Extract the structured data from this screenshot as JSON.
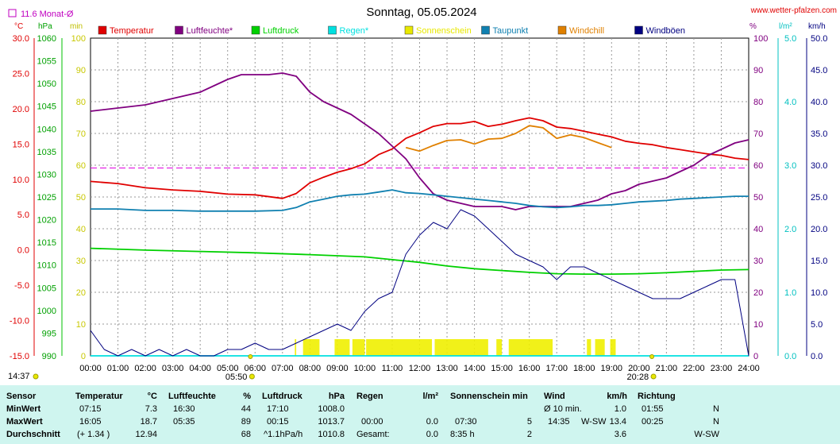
{
  "header": {
    "title": "Sonntag, 05.05.2024",
    "site": "www.wetter-pfalzen.com",
    "monthly_avg_label": "11.6 Monat-Ø",
    "unit_labels": {
      "temp": "°C",
      "press": "hPa",
      "min": "min",
      "pct": "%",
      "rain": "l/m²",
      "wind": "km/h"
    }
  },
  "legend": [
    {
      "label": "Temperatur",
      "color": "#e00000"
    },
    {
      "label": "Luftfeuchte*",
      "color": "#800080"
    },
    {
      "label": "Luftdruck",
      "color": "#00d000"
    },
    {
      "label": "Regen*",
      "color": "#00e0e0"
    },
    {
      "label": "Sonnenschein",
      "color": "#e8e800"
    },
    {
      "label": "Taupunkt",
      "color": "#1080b0"
    },
    {
      "label": "Windchill",
      "color": "#e08000"
    },
    {
      "label": "Windböen",
      "color": "#000080"
    }
  ],
  "chart_data": {
    "type": "line",
    "x_ticks": [
      "00:00",
      "01:00",
      "02:00",
      "03:00",
      "04:00",
      "05:00",
      "06:00",
      "07:00",
      "08:00",
      "09:00",
      "10:00",
      "11:00",
      "12:00",
      "13:00",
      "14:00",
      "15:00",
      "16:00",
      "17:00",
      "18:00",
      "19:00",
      "20:00",
      "21:00",
      "22:00",
      "23:00",
      "24:00"
    ],
    "axes": {
      "temperature": {
        "unit": "°C",
        "ylim": [
          -15,
          30
        ],
        "ticks": [
          "30.0",
          "25.0",
          "20.0",
          "15.0",
          "10.0",
          "5.0",
          "0.0",
          "-5.0",
          "-10.0",
          "-15.0"
        ]
      },
      "pressure": {
        "unit": "hPa",
        "ylim": [
          990,
          1060
        ],
        "ticks": [
          "1060",
          "1055",
          "1050",
          "1045",
          "1040",
          "1035",
          "1030",
          "1025",
          "1020",
          "1015",
          "1010",
          "1005",
          "1000",
          "995",
          "990"
        ]
      },
      "sunshine": {
        "unit": "min",
        "ylim": [
          0,
          100
        ],
        "ticks": [
          "100",
          "90",
          "80",
          "70",
          "60",
          "50",
          "40",
          "30",
          "20",
          "10",
          "0"
        ]
      },
      "humidity": {
        "unit": "%",
        "ylim": [
          0,
          100
        ],
        "ticks": [
          "100",
          "90",
          "80",
          "70",
          "60",
          "50",
          "40",
          "30",
          "20",
          "10",
          "0"
        ]
      },
      "rain": {
        "unit": "l/m²",
        "ylim": [
          0,
          5
        ],
        "ticks": [
          "5.0",
          "4.0",
          "3.0",
          "2.0",
          "1.0",
          "0.0"
        ]
      },
      "wind": {
        "unit": "km/h",
        "ylim": [
          0,
          50
        ],
        "ticks": [
          "50.0",
          "45.0",
          "40.0",
          "35.0",
          "30.0",
          "25.0",
          "20.0",
          "15.0",
          "10.0",
          "5.0",
          "0.0"
        ]
      }
    },
    "monthly_avg_temp": 11.6,
    "sunrise": {
      "x": 5.83,
      "label": "05:50"
    },
    "sunset": {
      "x": 20.47,
      "label": "20:28"
    },
    "moonrise_label": "14:37",
    "series": [
      {
        "name": "Temperatur",
        "axis": "temperature",
        "color": "#e00000",
        "x": [
          0,
          1,
          2,
          3,
          4,
          5,
          6,
          7,
          7.5,
          8,
          8.5,
          9,
          9.5,
          10,
          10.5,
          11,
          11.5,
          12,
          12.5,
          13,
          13.5,
          14,
          14.5,
          15,
          15.5,
          16,
          16.5,
          17,
          17.5,
          18,
          18.5,
          19,
          19.5,
          20,
          20.5,
          21,
          21.5,
          22,
          22.5,
          23,
          23.5,
          24
        ],
        "y": [
          9.7,
          9.4,
          8.8,
          8.5,
          8.3,
          7.9,
          7.8,
          7.3,
          8,
          9.5,
          10.3,
          11,
          11.5,
          12.2,
          13.5,
          14.3,
          15.8,
          16.6,
          17.5,
          17.9,
          17.9,
          18.2,
          17.5,
          17.8,
          18.3,
          18.7,
          18.3,
          17.4,
          17.2,
          16.8,
          16.4,
          16,
          15.4,
          15.1,
          14.9,
          14.5,
          14.2,
          13.9,
          13.6,
          13.4,
          13,
          12.8
        ]
      },
      {
        "name": "Luftfeuchte*",
        "axis": "humidity",
        "color": "#800080",
        "x": [
          0,
          1,
          2,
          3,
          4,
          4.5,
          5,
          5.5,
          6,
          6.5,
          7,
          7.5,
          8,
          8.5,
          9,
          9.5,
          10,
          10.5,
          11,
          11.5,
          12,
          12.5,
          13,
          13.5,
          14,
          14.5,
          15,
          15.5,
          16,
          16.5,
          17,
          17.5,
          18,
          18.5,
          19,
          19.5,
          20,
          20.5,
          21,
          21.5,
          22,
          22.5,
          23,
          23.5,
          24
        ],
        "y": [
          77,
          78,
          79,
          81,
          83,
          85,
          87,
          88.5,
          88.5,
          88.5,
          89,
          88,
          83,
          80,
          78,
          76,
          73,
          70,
          66,
          62,
          56,
          51,
          49,
          48,
          47,
          47,
          47,
          46,
          47,
          47,
          47,
          47,
          48,
          49,
          51,
          52,
          54,
          55,
          56,
          58,
          60,
          63,
          65,
          67,
          68
        ]
      },
      {
        "name": "Luftdruck",
        "axis": "pressure",
        "color": "#00d000",
        "x": [
          0,
          2,
          4,
          6,
          8,
          10,
          11,
          12,
          13,
          14,
          15,
          16,
          17,
          18,
          19,
          20,
          21,
          22,
          23,
          24
        ],
        "y": [
          1013.7,
          1013.3,
          1013,
          1012.7,
          1012.3,
          1011.8,
          1011.2,
          1010.6,
          1009.8,
          1009.2,
          1008.8,
          1008.4,
          1008.1,
          1008,
          1008,
          1008.1,
          1008.3,
          1008.6,
          1008.9,
          1009
        ]
      },
      {
        "name": "Regen*",
        "axis": "rain",
        "color": "#00e0e0",
        "x": [
          0,
          24
        ],
        "y": [
          0,
          0
        ]
      },
      {
        "name": "Taupunkt",
        "axis": "temperature",
        "color": "#1080b0",
        "x": [
          0,
          1,
          2,
          3,
          4,
          5,
          6,
          7,
          7.5,
          8,
          8.5,
          9,
          9.5,
          10,
          10.5,
          11,
          11.5,
          12,
          12.5,
          13,
          13.5,
          14,
          14.5,
          15,
          15.5,
          16,
          16.5,
          17,
          17.5,
          18,
          18.5,
          19,
          19.5,
          20,
          20.5,
          21,
          21.5,
          22,
          22.5,
          23,
          23.5,
          24
        ],
        "y": [
          5.8,
          5.8,
          5.6,
          5.6,
          5.5,
          5.5,
          5.5,
          5.6,
          6,
          6.8,
          7.2,
          7.6,
          7.8,
          7.9,
          8.2,
          8.5,
          8.1,
          8,
          7.8,
          7.6,
          7.4,
          7.2,
          7,
          6.8,
          6.6,
          6.3,
          6.1,
          6,
          6.1,
          6.3,
          6.3,
          6.4,
          6.6,
          6.8,
          6.9,
          7,
          7.2,
          7.3,
          7.4,
          7.5,
          7.6,
          7.6
        ]
      },
      {
        "name": "Windchill",
        "axis": "temperature",
        "color": "#e08000",
        "x": [
          11.5,
          12,
          12.5,
          13,
          13.5,
          14,
          14.5,
          15,
          15.5,
          16,
          16.5,
          17,
          17.5,
          18,
          18.5,
          19
        ],
        "y": [
          14.5,
          14,
          14.8,
          15.5,
          15.6,
          15,
          15.7,
          15.8,
          16.5,
          17.6,
          17.3,
          15.8,
          16.3,
          15.9,
          15.2,
          14.5
        ]
      },
      {
        "name": "Windböen",
        "axis": "wind",
        "color": "#000080",
        "x": [
          0,
          0.5,
          1,
          1.5,
          2,
          2.5,
          3,
          3.5,
          4,
          4.5,
          5,
          5.5,
          6,
          6.5,
          7,
          7.5,
          8,
          8.5,
          9,
          9.5,
          10,
          10.5,
          11,
          11.5,
          12,
          12.5,
          13,
          13.5,
          14,
          14.5,
          15,
          15.5,
          16,
          16.5,
          17,
          17.5,
          18,
          18.5,
          19,
          19.5,
          20,
          20.5,
          21,
          21.5,
          22,
          22.5,
          23,
          23.5,
          24
        ],
        "y": [
          4,
          1,
          0,
          1,
          0,
          1,
          0,
          1,
          0,
          0,
          1,
          1,
          2,
          1,
          1,
          2,
          3,
          4,
          5,
          4,
          7,
          9,
          10,
          16,
          19,
          21,
          20,
          23,
          22,
          20,
          18,
          16,
          15,
          14,
          12,
          14,
          14,
          13,
          12,
          11,
          10,
          9,
          9,
          9,
          10,
          11,
          12,
          12,
          0
        ]
      }
    ],
    "sunshine_periods": [
      [
        7.45,
        7.5
      ],
      [
        7.75,
        8.35
      ],
      [
        8.9,
        9.45
      ],
      [
        9.55,
        10
      ],
      [
        10.05,
        12.45
      ],
      [
        12.55,
        14.5
      ],
      [
        14.8,
        15
      ],
      [
        15.25,
        16.85
      ],
      [
        18.1,
        18.25
      ],
      [
        18.4,
        18.75
      ],
      [
        18.95,
        19.15
      ]
    ]
  },
  "table": {
    "headers": {
      "sensor": "Sensor",
      "temp": "Temperatur",
      "temp_unit": "°C",
      "hum": "Luftfeuchte",
      "hum_unit": "%",
      "press": "Luftdruck",
      "press_unit": "hPa",
      "rain": "Regen",
      "rain_unit": "l/m²",
      "sun": "Sonnenschein min",
      "wind": "Wind",
      "wind_unit": "km/h",
      "dir": "Richtung"
    },
    "rows": [
      {
        "label": "MinWert",
        "temp_time": "07:15",
        "temp_val": "7.3",
        "hum_time": "16:30",
        "hum_val": "44",
        "press_time": "17:10",
        "press_val": "1008.0",
        "rain_time": "",
        "rain_val": "",
        "sun_time": "",
        "sun_val": "",
        "wind_time": "Ø 10 min.",
        "wind_dir": "",
        "wind_val": "1.0",
        "dir_time": "01:55",
        "dir_val": "N"
      },
      {
        "label": "MaxWert",
        "temp_time": "16:05",
        "temp_val": "18.7",
        "hum_time": "05:35",
        "hum_val": "89",
        "press_time": "00:15",
        "press_val": "1013.7",
        "rain_time": "00:00",
        "rain_val": "0.0",
        "sun_time": "07:30",
        "sun_val": "5",
        "wind_time": "14:35",
        "wind_dir": "W-SW",
        "wind_val": "13.4",
        "dir_time": "00:25",
        "dir_val": "N"
      },
      {
        "label": "Durchschnitt",
        "temp_time": "(+ 1.34 )",
        "temp_val": "12.94",
        "hum_time": "",
        "hum_val": "68",
        "press_time": "^1.1hPa/h",
        "press_val": "1010.8",
        "rain_time": "Gesamt:",
        "rain_val": "0.0",
        "sun_time": "8:35 h",
        "sun_val": "2",
        "wind_time": "",
        "wind_dir": "",
        "wind_val": "3.6",
        "dir_time": "",
        "dir_val": "W-SW"
      }
    ]
  }
}
